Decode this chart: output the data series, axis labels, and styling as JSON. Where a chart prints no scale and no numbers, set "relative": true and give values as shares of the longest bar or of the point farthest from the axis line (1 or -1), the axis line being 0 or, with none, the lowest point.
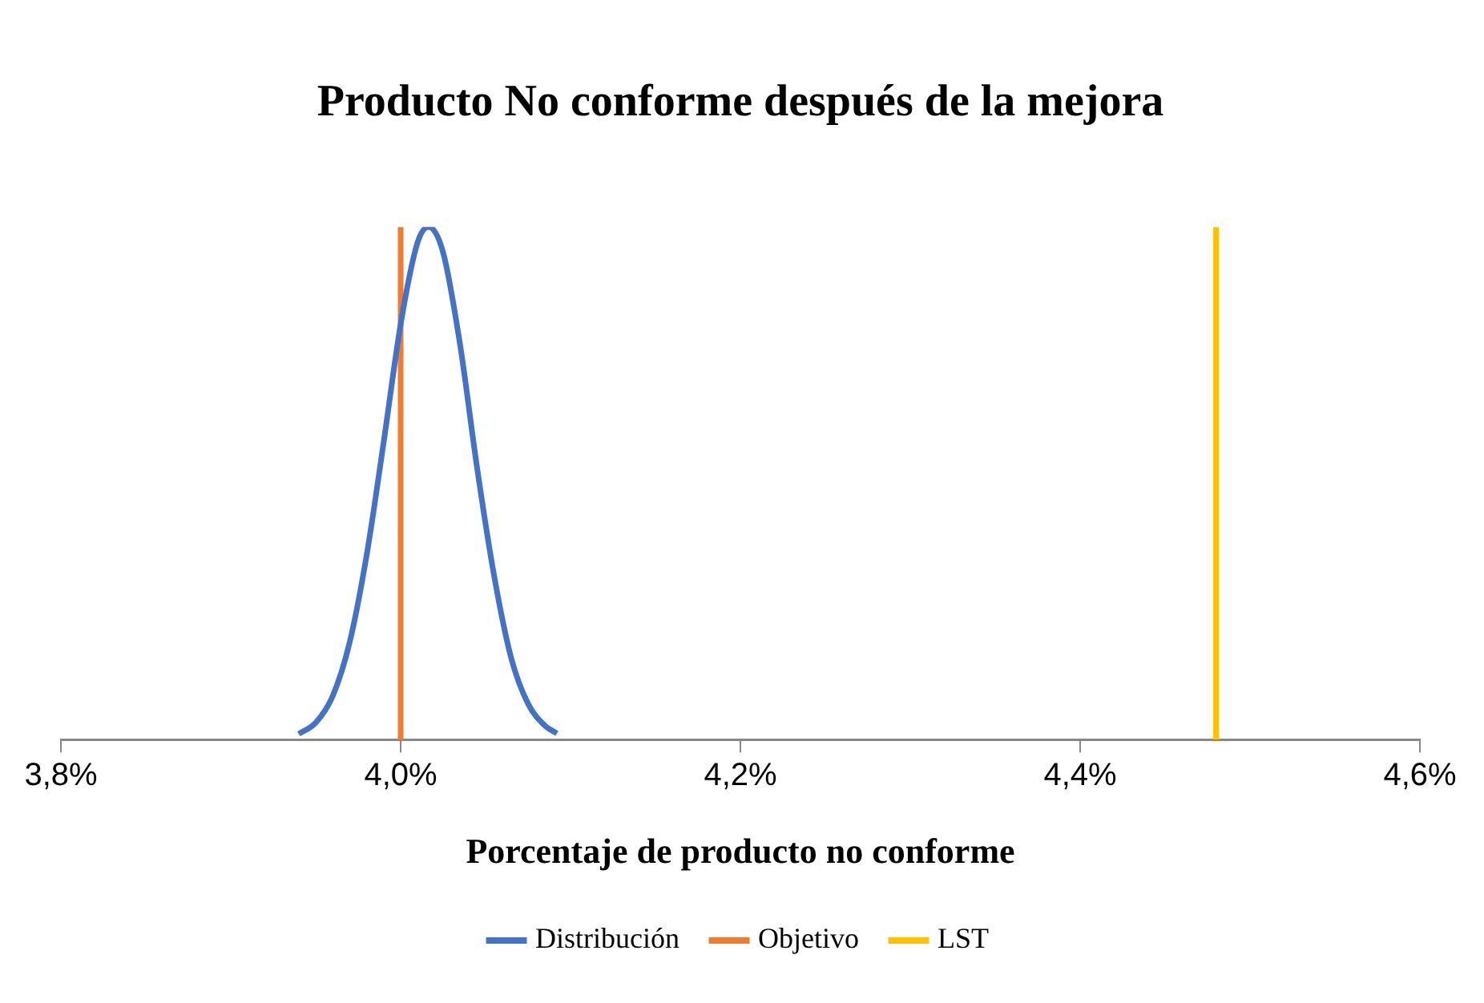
{
  "chart_data": {
    "type": "line",
    "title": "Producto No conforme después de la mejora",
    "xlabel": "Porcentaje de producto no conforme",
    "relative": true,
    "xlim": [
      3.8,
      4.6
    ],
    "xticks": [
      {
        "value": 3.8,
        "label": "3,8%"
      },
      {
        "value": 4.0,
        "label": "4,0%"
      },
      {
        "value": 4.2,
        "label": "4,2%"
      },
      {
        "value": 4.4,
        "label": "4,4%"
      },
      {
        "value": 4.6,
        "label": "4,6%"
      }
    ],
    "grid": false,
    "legend": "bottom",
    "marker": "none",
    "line_style": "solid",
    "series": [
      {
        "name": "Distribución",
        "color": "#4472c4",
        "x": [
          3.94,
          3.95,
          3.96,
          3.97,
          3.98,
          3.99,
          4.0,
          4.01,
          4.0165,
          4.025,
          4.035,
          4.045,
          4.055,
          4.065,
          4.075,
          4.085,
          4.092
        ],
        "values": [
          0.011,
          0.033,
          0.085,
          0.19,
          0.36,
          0.58,
          0.81,
          0.97,
          1,
          0.95,
          0.77,
          0.53,
          0.32,
          0.16,
          0.07,
          0.027,
          0.012
        ]
      },
      {
        "name": "Objetivo",
        "color": "#ed7d31",
        "x": [
          4.0,
          4.0
        ],
        "values": [
          0,
          1
        ]
      },
      {
        "name": "LST",
        "color": "#ffc000",
        "x": [
          4.48,
          4.48
        ],
        "values": [
          0,
          1
        ]
      }
    ]
  }
}
